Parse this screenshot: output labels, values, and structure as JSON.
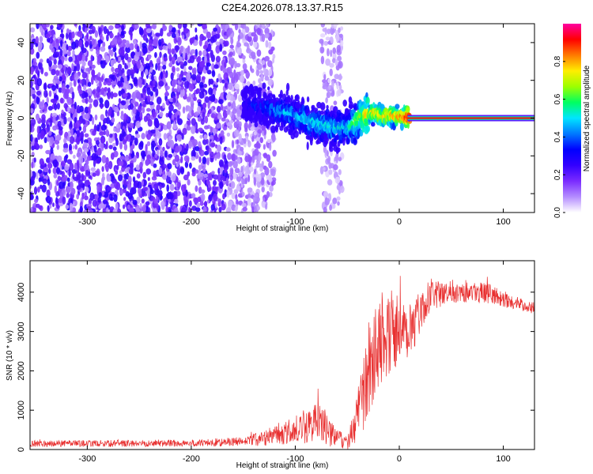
{
  "figure": {
    "title": "C2E4.2026.078.13.37.R15"
  },
  "colors": {
    "spectrogram_main": "#6a0af0",
    "spectrogram_faint": "#d8b8ff",
    "snr_line": "#e83030",
    "colormap": [
      "#ffffff",
      "#b48cff",
      "#7a2bff",
      "#3300ff",
      "#0000ff",
      "#0078ff",
      "#00e5ff",
      "#00ff60",
      "#9cff00",
      "#ffee00",
      "#ff7a00",
      "#ff0000",
      "#ff00a0"
    ]
  },
  "chart_data": [
    {
      "type": "heatmap",
      "name": "spectrogram",
      "xlabel": "Height of straight line (km)",
      "ylabel": "Frequency (Hz)",
      "xlim": [
        -355,
        130
      ],
      "ylim": [
        -50,
        50
      ],
      "xticks": [
        -300,
        -200,
        -100,
        0,
        100
      ],
      "xtick_labels": [
        "-300",
        "-200",
        "-100",
        "0",
        "100"
      ],
      "yticks": [
        -40,
        -20,
        0,
        20,
        40
      ],
      "ytick_labels": [
        "-40",
        "-20",
        "0",
        "20",
        "40"
      ],
      "colorbar": {
        "label": "Normalized spectral amplitude",
        "range": [
          0.0,
          1.0
        ],
        "ticks": [
          0.0,
          0.2,
          0.4,
          0.6,
          0.8
        ],
        "tick_labels": [
          "0.0",
          "0.2",
          "0.4",
          "0.6",
          "0.8"
        ]
      },
      "regions": [
        {
          "x_range": [
            -355,
            -165
          ],
          "freq_range": [
            -50,
            50
          ],
          "amplitude": 0.15,
          "description": "dense low-amplitude noise"
        },
        {
          "x_range": [
            -165,
            -120
          ],
          "freq_range": [
            -50,
            50
          ],
          "amplitude": 0.08,
          "description": "thinning noise"
        },
        {
          "x_range": [
            -75,
            -55
          ],
          "freq_range": [
            -50,
            50
          ],
          "amplitude": 0.06,
          "description": "faint vertical band"
        }
      ],
      "tone_track": [
        {
          "x": -150,
          "f": 8
        },
        {
          "x": -140,
          "f": 7
        },
        {
          "x": -130,
          "f": 6
        },
        {
          "x": -120,
          "f": 4
        },
        {
          "x": -110,
          "f": 3
        },
        {
          "x": -100,
          "f": 1
        },
        {
          "x": -90,
          "f": -1
        },
        {
          "x": -80,
          "f": -3
        },
        {
          "x": -70,
          "f": -4
        },
        {
          "x": -60,
          "f": -5
        },
        {
          "x": -50,
          "f": -5
        },
        {
          "x": -45,
          "f": -3
        },
        {
          "x": -40,
          "f": -1
        },
        {
          "x": -35,
          "f": 1
        },
        {
          "x": -30,
          "f": 2
        },
        {
          "x": -25,
          "f": 3
        },
        {
          "x": -20,
          "f": 2
        },
        {
          "x": -15,
          "f": 1
        },
        {
          "x": -10,
          "f": 2
        },
        {
          "x": -5,
          "f": 1
        },
        {
          "x": 0,
          "f": 1
        },
        {
          "x": 5,
          "f": 0.5
        },
        {
          "x": 10,
          "f": 0
        },
        {
          "x": 130,
          "f": 0
        }
      ],
      "tone_amplitude": [
        {
          "x": -150,
          "a": 0.3
        },
        {
          "x": -110,
          "a": 0.45
        },
        {
          "x": -80,
          "a": 0.5
        },
        {
          "x": -50,
          "a": 0.5
        },
        {
          "x": -30,
          "a": 0.75
        },
        {
          "x": 0,
          "a": 0.8
        },
        {
          "x": 10,
          "a": 0.95
        },
        {
          "x": 130,
          "a": 0.95
        }
      ]
    },
    {
      "type": "line",
      "name": "snr",
      "xlabel": "Height of straight line (km)",
      "ylabel": "SNR (10 * v/v)",
      "xlim": [
        -355,
        130
      ],
      "ylim": [
        0,
        4800
      ],
      "xticks": [
        -300,
        -200,
        -100,
        0,
        100
      ],
      "xtick_labels": [
        "-300",
        "-200",
        "-100",
        "0",
        "100"
      ],
      "yticks": [
        0,
        1000,
        2000,
        3000,
        4000
      ],
      "ytick_labels": [
        "0",
        "1000",
        "2000",
        "3000",
        "4000"
      ],
      "series": [
        {
          "name": "SNR",
          "envelope": [
            {
              "x": -355,
              "mean": 150,
              "spread": 80
            },
            {
              "x": -200,
              "mean": 160,
              "spread": 90
            },
            {
              "x": -150,
              "mean": 200,
              "spread": 120
            },
            {
              "x": -120,
              "mean": 350,
              "spread": 250
            },
            {
              "x": -100,
              "mean": 500,
              "spread": 350
            },
            {
              "x": -90,
              "mean": 600,
              "spread": 450
            },
            {
              "x": -80,
              "mean": 700,
              "spread": 500
            },
            {
              "x": -70,
              "mean": 550,
              "spread": 450
            },
            {
              "x": -60,
              "mean": 250,
              "spread": 250
            },
            {
              "x": -50,
              "mean": 200,
              "spread": 200
            },
            {
              "x": -40,
              "mean": 800,
              "spread": 700
            },
            {
              "x": -30,
              "mean": 2000,
              "spread": 1200
            },
            {
              "x": -20,
              "mean": 2800,
              "spread": 1200
            },
            {
              "x": -10,
              "mean": 3000,
              "spread": 1100
            },
            {
              "x": 0,
              "mean": 3000,
              "spread": 1000
            },
            {
              "x": 10,
              "mean": 3100,
              "spread": 900
            },
            {
              "x": 20,
              "mean": 3500,
              "spread": 500
            },
            {
              "x": 30,
              "mean": 3900,
              "spread": 350
            },
            {
              "x": 60,
              "mean": 4050,
              "spread": 300
            },
            {
              "x": 90,
              "mean": 3950,
              "spread": 250
            },
            {
              "x": 100,
              "mean": 3800,
              "spread": 180
            },
            {
              "x": 130,
              "mean": 3600,
              "spread": 150
            }
          ]
        }
      ]
    }
  ]
}
